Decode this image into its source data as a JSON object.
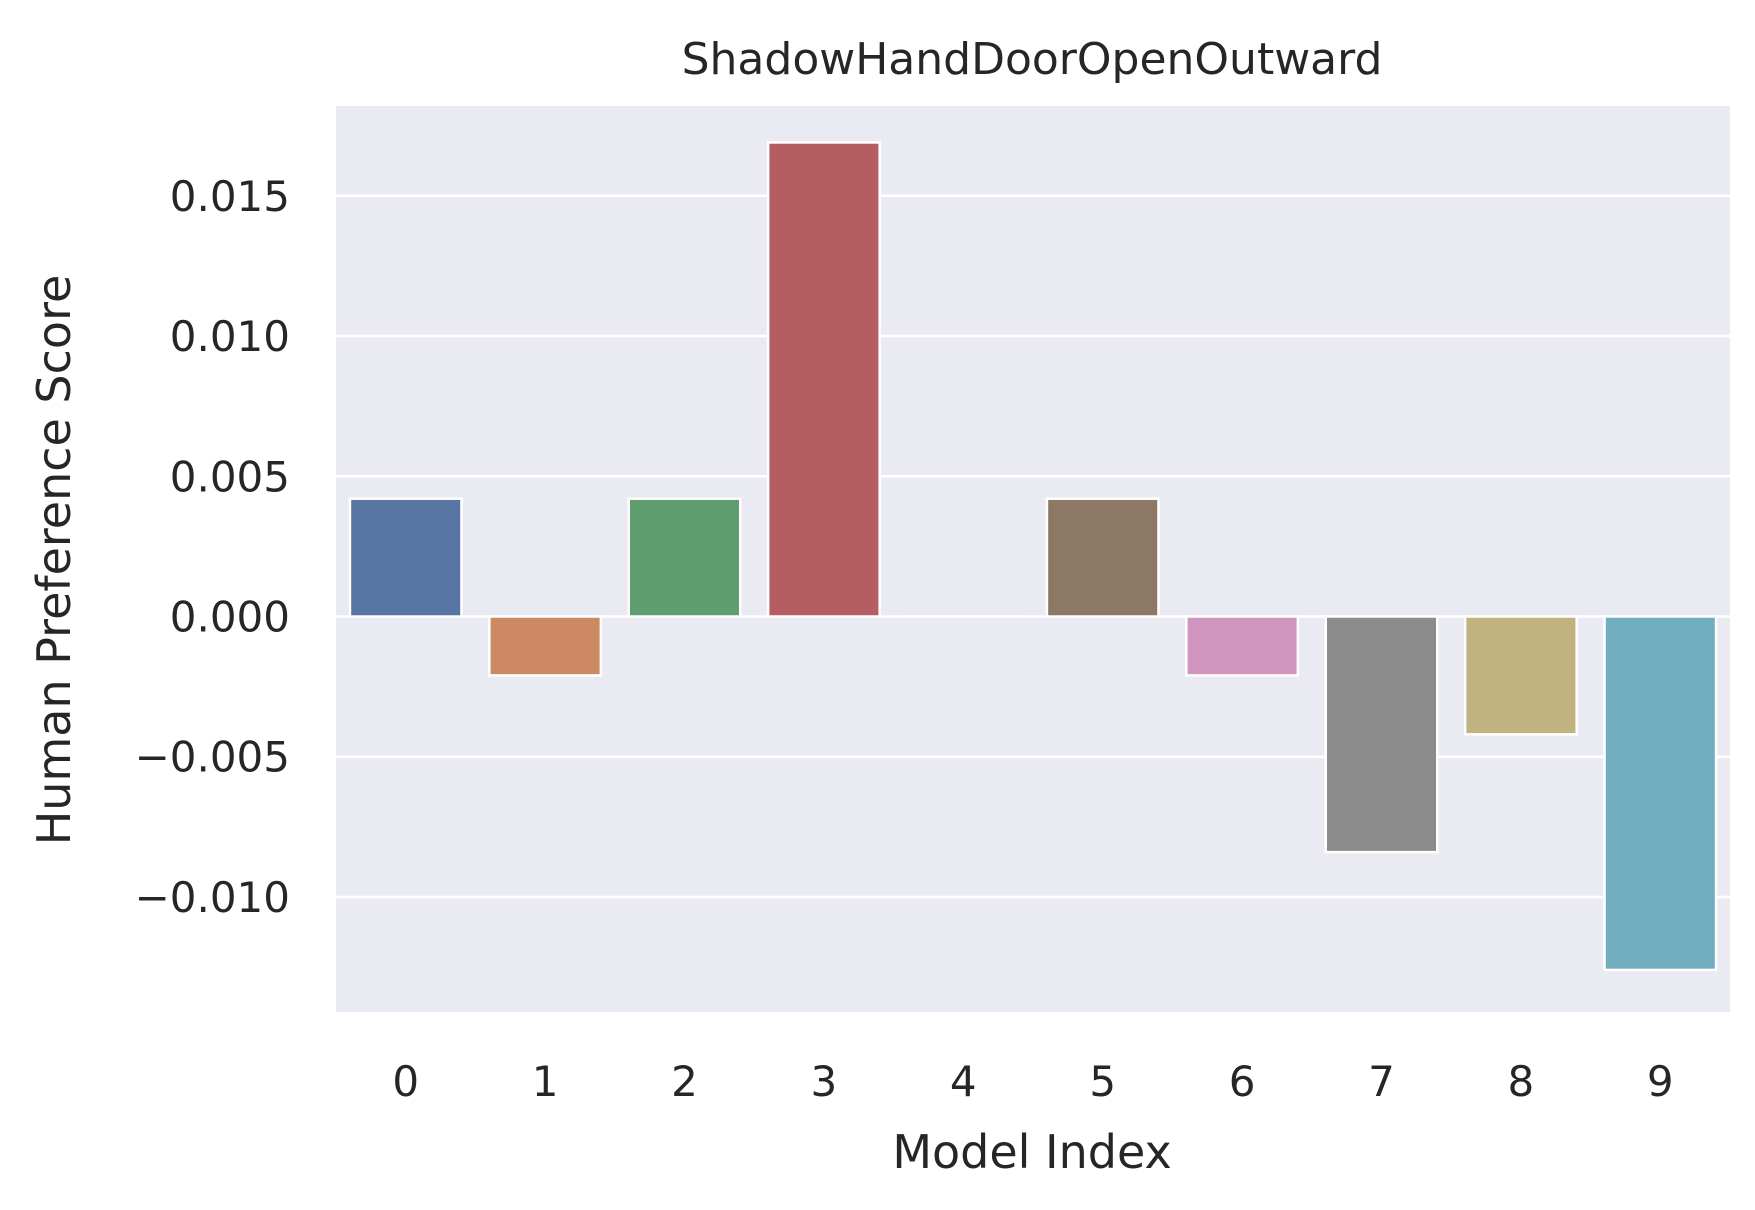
{
  "chart_data": {
    "type": "bar",
    "title": "ShadowHandDoorOpenOutward",
    "xlabel": "Model Index",
    "ylabel": "Human Preference Score",
    "categories": [
      "0",
      "1",
      "2",
      "3",
      "4",
      "5",
      "6",
      "7",
      "8",
      "9"
    ],
    "values": [
      0.0042,
      -0.0021,
      0.0042,
      0.0169,
      0.0,
      0.0042,
      -0.0021,
      -0.0084,
      -0.0042,
      -0.0126
    ],
    "colors": [
      "#5975a4",
      "#cc8963",
      "#5f9e6e",
      "#b55d60",
      "#857aab",
      "#8d7866",
      "#d095bf",
      "#8c8c8c",
      "#c1b37f",
      "#71aec0"
    ],
    "ylim": [
      -0.0141,
      0.0182
    ],
    "yticks": [
      -0.01,
      -0.005,
      0.0,
      0.005,
      0.01,
      0.015
    ],
    "ytick_labels": [
      "−0.010",
      "−0.005",
      "0.000",
      "0.005",
      "0.010",
      "0.015"
    ],
    "grid": true,
    "background": "#eaeaf2",
    "grid_color": "#ffffff"
  }
}
